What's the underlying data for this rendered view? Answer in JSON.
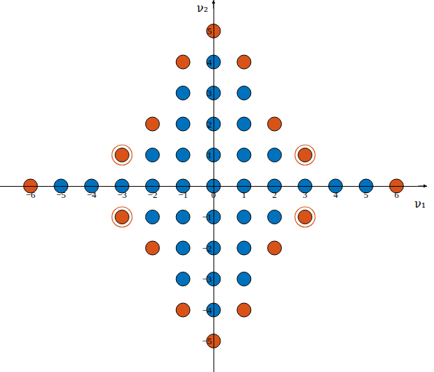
{
  "chart_data": {
    "type": "scatter",
    "x_label": "ν₁",
    "y_label": "ν₂",
    "xlim": [
      -7,
      7
    ],
    "ylim": [
      -6,
      6
    ],
    "xticks": [
      -6,
      -5,
      -4,
      -3,
      -2,
      -1,
      0,
      1,
      2,
      3,
      4,
      5,
      6
    ],
    "yticks": [
      -5,
      -4,
      -3,
      -2,
      -1,
      1,
      2,
      3,
      4,
      5
    ],
    "grid": false,
    "series": [
      {
        "color": "#0072bd",
        "marker": "circle",
        "x": [
          -5,
          -4,
          -3,
          -2,
          -1,
          0,
          1,
          2,
          3,
          4,
          5,
          -2,
          -1,
          0,
          1,
          2,
          -2,
          -1,
          0,
          1,
          2,
          -1,
          0,
          1,
          -1,
          0,
          1,
          -1,
          0,
          1,
          -1,
          0,
          1,
          0,
          0
        ],
        "values": [
          0,
          0,
          0,
          0,
          0,
          0,
          0,
          0,
          0,
          0,
          0,
          1,
          1,
          1,
          1,
          1,
          -1,
          -1,
          -1,
          -1,
          -1,
          2,
          2,
          2,
          -2,
          -2,
          -2,
          3,
          3,
          3,
          -3,
          -3,
          -3,
          4,
          -4
        ]
      },
      {
        "color": "#d95319",
        "marker": "circle",
        "x": [
          -6,
          6,
          -2,
          2,
          -2,
          2,
          -1,
          1,
          -1,
          1,
          0,
          0
        ],
        "values": [
          0,
          0,
          2,
          2,
          -2,
          -2,
          4,
          4,
          -4,
          -4,
          5,
          -5
        ]
      },
      {
        "color": "#d95319",
        "marker": "ringed",
        "x": [
          -3,
          3,
          -3,
          3
        ],
        "values": [
          1,
          1,
          -1,
          -1
        ]
      }
    ]
  }
}
